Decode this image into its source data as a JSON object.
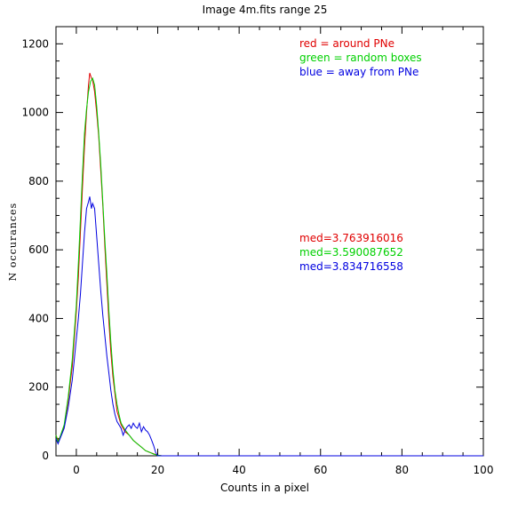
{
  "chart_data": {
    "type": "line",
    "title": "Image 4m.fits   range 25",
    "xlabel": "Counts in a pixel",
    "ylabel": "N occurances",
    "xlim": [
      -5,
      100
    ],
    "ylim": [
      0,
      1250
    ],
    "xticks": [
      0,
      20,
      40,
      60,
      80,
      100
    ],
    "yticks": [
      0,
      200,
      400,
      600,
      800,
      1000,
      1200
    ],
    "xtick_labels": [
      "0",
      "20",
      "40",
      "60",
      "80",
      "100"
    ],
    "ytick_labels": [
      "0",
      "200",
      "400",
      "600",
      "800",
      "1000",
      "1200"
    ],
    "grid": false,
    "legend": [
      {
        "text": "red = around PNe",
        "color": "#e00000"
      },
      {
        "text": "green = random boxes",
        "color": "#00d000"
      },
      {
        "text": "blue = away from PNe",
        "color": "#0000e0"
      }
    ],
    "annotations": [
      {
        "text": "med=3.763916016",
        "color": "#e00000"
      },
      {
        "text": "med=3.590087652",
        "color": "#00d000"
      },
      {
        "text": "med=3.834716558",
        "color": "#0000e0"
      }
    ],
    "series": [
      {
        "color": "#e00000",
        "points": [
          [
            -5,
            60
          ],
          [
            -4.5,
            45
          ],
          [
            -4,
            55
          ],
          [
            -3,
            85
          ],
          [
            -2,
            160
          ],
          [
            -1,
            260
          ],
          [
            0,
            420
          ],
          [
            0.5,
            520
          ],
          [
            1,
            650
          ],
          [
            1.5,
            780
          ],
          [
            2,
            900
          ],
          [
            2.5,
            1000
          ],
          [
            3,
            1080
          ],
          [
            3.3,
            1115
          ],
          [
            3.7,
            1100
          ],
          [
            4,
            1095
          ],
          [
            4.5,
            1060
          ],
          [
            5,
            1000
          ],
          [
            5.5,
            930
          ],
          [
            6,
            830
          ],
          [
            6.5,
            730
          ],
          [
            7,
            610
          ],
          [
            7.5,
            500
          ],
          [
            8,
            390
          ],
          [
            8.5,
            300
          ],
          [
            9,
            230
          ],
          [
            9.5,
            180
          ],
          [
            10,
            130
          ],
          [
            10.5,
            110
          ],
          [
            11,
            90
          ],
          [
            12,
            70
          ],
          [
            13,
            60
          ],
          [
            14,
            45
          ],
          [
            15,
            35
          ],
          [
            16,
            25
          ],
          [
            17,
            15
          ],
          [
            18,
            10
          ],
          [
            19,
            6
          ],
          [
            20,
            2
          ],
          [
            21,
            0
          ],
          [
            100,
            0
          ]
        ]
      },
      {
        "color": "#00d000",
        "points": [
          [
            -5,
            60
          ],
          [
            -4.5,
            40
          ],
          [
            -4,
            55
          ],
          [
            -3,
            90
          ],
          [
            -2,
            170
          ],
          [
            -1,
            280
          ],
          [
            0,
            440
          ],
          [
            0.5,
            560
          ],
          [
            1,
            690
          ],
          [
            1.5,
            820
          ],
          [
            2,
            940
          ],
          [
            2.5,
            1010
          ],
          [
            3,
            1060
          ],
          [
            3.5,
            1090
          ],
          [
            4,
            1100
          ],
          [
            4.5,
            1080
          ],
          [
            5,
            1020
          ],
          [
            5.5,
            940
          ],
          [
            6,
            850
          ],
          [
            6.5,
            740
          ],
          [
            7,
            630
          ],
          [
            7.5,
            530
          ],
          [
            8,
            420
          ],
          [
            8.5,
            330
          ],
          [
            9,
            250
          ],
          [
            9.5,
            190
          ],
          [
            10,
            150
          ],
          [
            10.5,
            120
          ],
          [
            11,
            95
          ],
          [
            12,
            75
          ],
          [
            13,
            60
          ],
          [
            14,
            45
          ],
          [
            15,
            35
          ],
          [
            16,
            25
          ],
          [
            17,
            15
          ],
          [
            18,
            10
          ],
          [
            19,
            5
          ],
          [
            20,
            2
          ],
          [
            21,
            0
          ],
          [
            100,
            0
          ]
        ]
      },
      {
        "color": "#0000e0",
        "points": [
          [
            -5,
            50
          ],
          [
            -4.5,
            35
          ],
          [
            -4,
            50
          ],
          [
            -3,
            80
          ],
          [
            -2,
            140
          ],
          [
            -1,
            220
          ],
          [
            0,
            340
          ],
          [
            0.5,
            400
          ],
          [
            1,
            470
          ],
          [
            1.5,
            560
          ],
          [
            2,
            650
          ],
          [
            2.5,
            720
          ],
          [
            3,
            740
          ],
          [
            3.3,
            755
          ],
          [
            3.7,
            720
          ],
          [
            4,
            735
          ],
          [
            4.5,
            720
          ],
          [
            5,
            640
          ],
          [
            5.5,
            560
          ],
          [
            6,
            480
          ],
          [
            6.5,
            410
          ],
          [
            7,
            350
          ],
          [
            7.5,
            290
          ],
          [
            8,
            240
          ],
          [
            8.5,
            190
          ],
          [
            9,
            150
          ],
          [
            9.5,
            120
          ],
          [
            10,
            100
          ],
          [
            10.5,
            90
          ],
          [
            11,
            80
          ],
          [
            11.5,
            60
          ],
          [
            12,
            75
          ],
          [
            12.5,
            85
          ],
          [
            13,
            90
          ],
          [
            13.5,
            80
          ],
          [
            14,
            95
          ],
          [
            14.5,
            85
          ],
          [
            15,
            80
          ],
          [
            15.5,
            95
          ],
          [
            16,
            70
          ],
          [
            16.5,
            85
          ],
          [
            17,
            75
          ],
          [
            17.5,
            70
          ],
          [
            18,
            60
          ],
          [
            18.5,
            45
          ],
          [
            19,
            30
          ],
          [
            19.5,
            10
          ],
          [
            20,
            0
          ],
          [
            100,
            0
          ]
        ]
      }
    ]
  }
}
